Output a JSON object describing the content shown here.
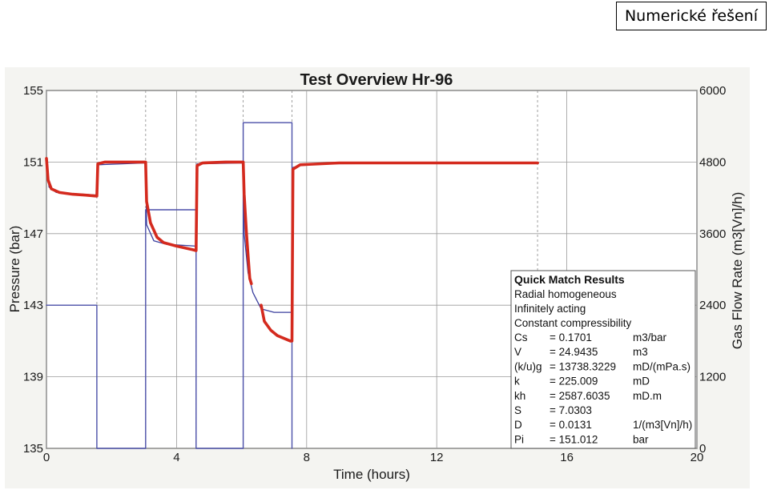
{
  "corner_label": "Numerické řešení",
  "chart_data": {
    "type": "line",
    "title": "Test Overview Hr-96",
    "xlabel": "Time (hours)",
    "ylabel": "Pressure (bar)",
    "y2label": "Gas Flow Rate (m3[Vn]/h)",
    "xlim": [
      0,
      20
    ],
    "ylim": [
      135,
      155
    ],
    "y2lim": [
      0,
      6000
    ],
    "xticks": [
      "0",
      "4",
      "8",
      "12",
      "16",
      "20"
    ],
    "yticks": [
      "135",
      "139",
      "143",
      "147",
      "151",
      "155"
    ],
    "y2ticks": [
      "0",
      "1200",
      "2400",
      "3600",
      "4800",
      "6000"
    ],
    "grid": true,
    "series": [
      {
        "axis": "left",
        "color": "#d42a1e",
        "points": [
          [
            0.0,
            151.2
          ],
          [
            0.05,
            150.0
          ],
          [
            0.15,
            149.5
          ],
          [
            0.4,
            149.3
          ],
          [
            0.8,
            149.2
          ],
          [
            1.2,
            149.15
          ],
          [
            1.55,
            149.1
          ],
          [
            1.58,
            150.9
          ],
          [
            1.8,
            151.0
          ],
          [
            2.5,
            151.0
          ],
          [
            3.05,
            151.0
          ],
          [
            3.08,
            148.8
          ],
          [
            3.2,
            147.6
          ],
          [
            3.4,
            146.8
          ],
          [
            3.6,
            146.5
          ],
          [
            4.0,
            146.3
          ],
          [
            4.5,
            146.1
          ],
          [
            4.6,
            146.05
          ],
          [
            4.63,
            150.8
          ],
          [
            4.8,
            150.95
          ],
          [
            5.5,
            151.0
          ],
          [
            6.05,
            151.0
          ],
          [
            6.08,
            149.2
          ],
          [
            6.15,
            147.0
          ],
          [
            6.25,
            144.5
          ],
          [
            6.3,
            144.2
          ]
        ]
      },
      {
        "axis": "left",
        "color": "#d42a1e",
        "points": [
          [
            6.6,
            143.0
          ],
          [
            6.7,
            142.1
          ],
          [
            6.9,
            141.6
          ],
          [
            7.1,
            141.3
          ],
          [
            7.5,
            141.0
          ],
          [
            7.55,
            141.0
          ],
          [
            7.58,
            150.6
          ],
          [
            7.8,
            150.85
          ],
          [
            9.0,
            150.95
          ],
          [
            12.0,
            150.95
          ],
          [
            15.1,
            150.95
          ]
        ]
      },
      {
        "axis": "left",
        "color": "#3a3f9e",
        "points": [
          [
            0.0,
            151.0
          ],
          [
            0.08,
            149.6
          ],
          [
            0.3,
            149.3
          ],
          [
            1.55,
            149.15
          ],
          [
            1.58,
            150.85
          ],
          [
            3.05,
            150.95
          ],
          [
            3.08,
            147.5
          ],
          [
            3.3,
            146.6
          ],
          [
            3.7,
            146.4
          ],
          [
            4.6,
            146.3
          ],
          [
            4.63,
            150.9
          ],
          [
            6.05,
            150.95
          ],
          [
            6.08,
            147.0
          ],
          [
            6.2,
            144.8
          ],
          [
            6.35,
            143.7
          ],
          [
            6.6,
            142.8
          ],
          [
            7.0,
            142.6
          ],
          [
            7.55,
            142.6
          ],
          [
            7.58,
            150.7
          ],
          [
            8.0,
            150.9
          ],
          [
            15.1,
            150.95
          ]
        ]
      },
      {
        "axis": "right",
        "color": "#4b4fa8",
        "points": [
          [
            0.0,
            2400
          ],
          [
            1.55,
            2400
          ],
          [
            1.55,
            0
          ],
          [
            3.05,
            0
          ],
          [
            3.05,
            4000
          ],
          [
            4.6,
            4000
          ],
          [
            4.6,
            0
          ],
          [
            6.05,
            0
          ],
          [
            6.05,
            5460
          ],
          [
            7.55,
            5460
          ],
          [
            7.55,
            0
          ]
        ]
      }
    ],
    "annotation": {
      "header": "Quick Match Results",
      "lines": [
        "Radial homogeneous",
        "Infinitely acting",
        "Constant compressibility"
      ],
      "params": [
        [
          "Cs",
          "= 0.1701",
          "m3/bar"
        ],
        [
          "V",
          "= 24.9435",
          "m3"
        ],
        [
          "(k/u)g",
          "= 13738.3229",
          "mD/(mPa.s)"
        ],
        [
          "k",
          "= 225.009",
          "mD"
        ],
        [
          "kh",
          "= 2587.6035",
          "mD.m"
        ],
        [
          "S",
          "= 7.0303",
          ""
        ],
        [
          "D",
          "= 0.0131",
          "1/(m3[Vn]/h)"
        ],
        [
          "Pi",
          "= 151.012",
          "bar"
        ]
      ]
    }
  }
}
